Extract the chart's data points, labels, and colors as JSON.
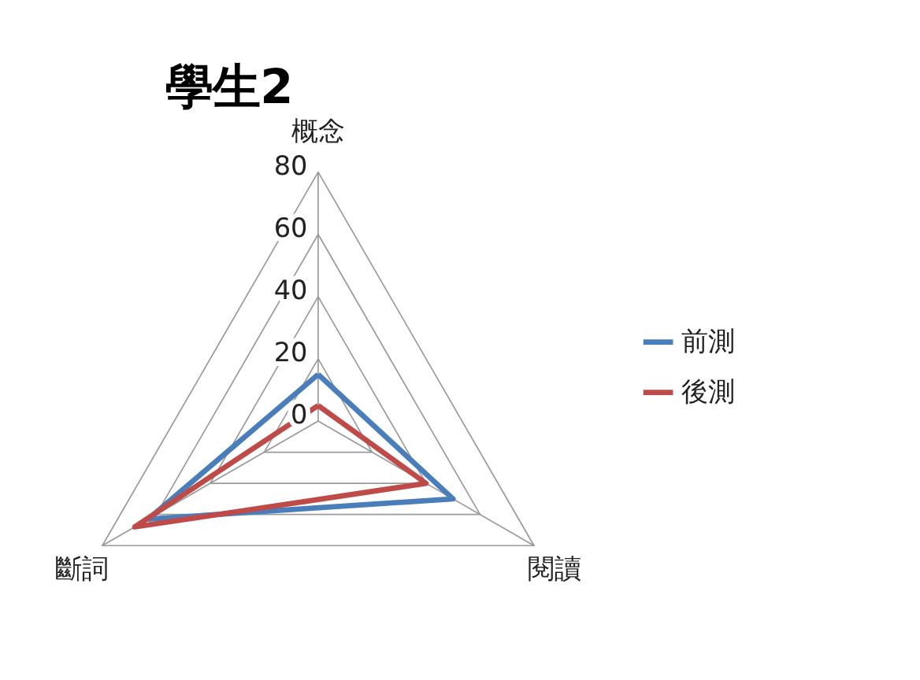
{
  "chart_data": {
    "type": "radar",
    "title": "學生2",
    "categories": [
      "概念",
      "閱讀",
      "斷詞"
    ],
    "series": [
      {
        "name": "前測",
        "color": "#4a7ebb",
        "values": [
          15,
          50,
          63
        ]
      },
      {
        "name": "後測",
        "color": "#be4b48",
        "values": [
          5,
          40,
          68
        ]
      }
    ],
    "ylim": [
      0,
      80
    ],
    "yticks": [
      0,
      20,
      40,
      60,
      80
    ],
    "legend": "right",
    "grid": true
  }
}
